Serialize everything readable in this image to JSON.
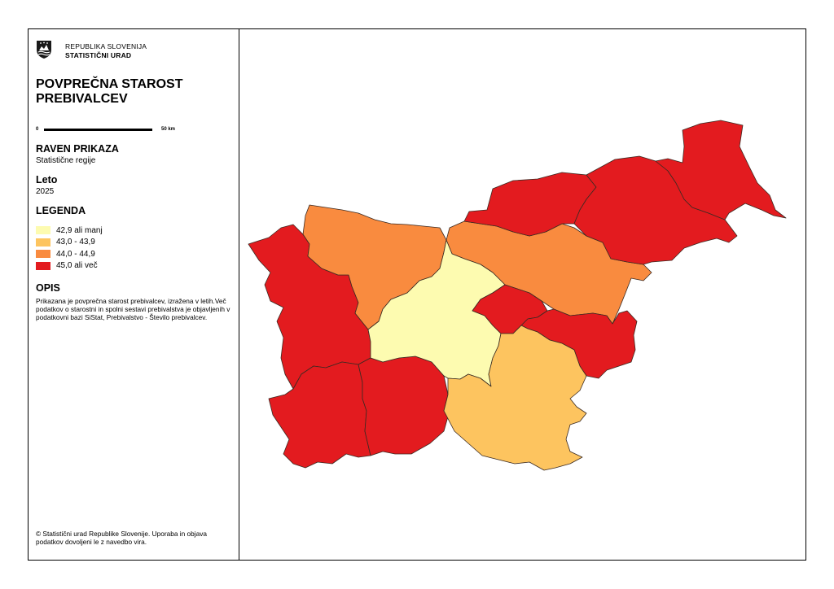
{
  "header": {
    "org_line1": "REPUBLIKA SLOVENIJA",
    "org_line2": "STATISTIČNI URAD",
    "logo_icon": "coat-of-arms-icon",
    "title": "POVPREČNA STAROST PREBIVALCEV"
  },
  "scale_bar": {
    "start_label": "0",
    "end_label": "50 km"
  },
  "display_level": {
    "heading": "RAVEN PRIKAZA",
    "value": "Statistične regije"
  },
  "year": {
    "heading": "Leto",
    "value": "2025"
  },
  "legend": {
    "heading": "LEGENDA",
    "items": [
      {
        "label": "42,9 ali manj",
        "color": "#fdfbb0"
      },
      {
        "label": "43,0 - 43,9",
        "color": "#fdc45f"
      },
      {
        "label": "44,0 - 44,9",
        "color": "#f98b3f"
      },
      {
        "label": "45,0 ali več",
        "color": "#e31b1f"
      }
    ]
  },
  "description": {
    "heading": "OPIS",
    "text": "Prikazana je povprečna starost prebivalcev, izražena v letih.Več podatkov o starostni in spolni sestavi prebivalstva je objavljenih v podatkovni bazi SiStat, Prebivalstvo - Število prebivalcev."
  },
  "footer": {
    "copyright": "© Statistični urad Republike Slovenije. Uporaba in objava podatkov dovoljeni le z navedbo vira."
  },
  "regions": [
    {
      "class": "45,0 ali več",
      "color": "#e31b1f"
    },
    {
      "class": "45,0 ali več",
      "color": "#e31b1f"
    },
    {
      "class": "45,0 ali več",
      "color": "#e31b1f"
    },
    {
      "class": "44,0 - 44,9",
      "color": "#f98b3f"
    },
    {
      "class": "44,0 - 44,9",
      "color": "#f98b3f"
    },
    {
      "class": "42,9 ali manj",
      "color": "#fdfbb0"
    },
    {
      "class": "45,0 ali več",
      "color": "#e31b1f"
    },
    {
      "class": "45,0 ali več",
      "color": "#e31b1f"
    },
    {
      "class": "43,0 - 43,9",
      "color": "#fdc45f"
    },
    {
      "class": "45,0 ali več",
      "color": "#e31b1f"
    },
    {
      "class": "45,0 ali več",
      "color": "#e31b1f"
    },
    {
      "class": "45,0 ali več",
      "color": "#e31b1f"
    }
  ]
}
